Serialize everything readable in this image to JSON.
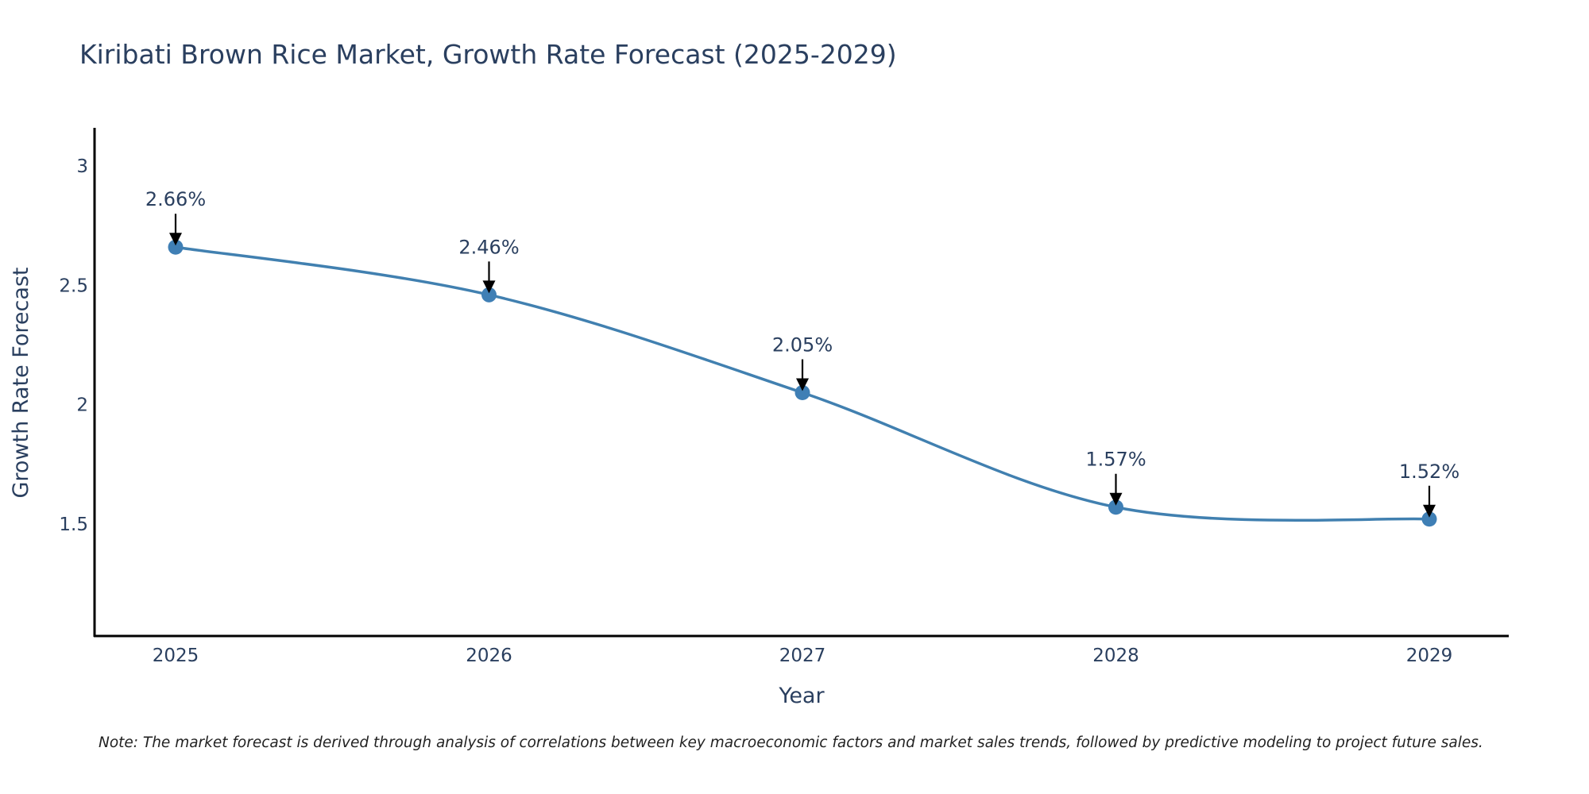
{
  "chart_data": {
    "type": "line",
    "title": "Kiribati Brown Rice Market, Growth Rate Forecast (2025-2029)",
    "xlabel": "Year",
    "ylabel": "Growth Rate Forecast",
    "categories": [
      "2025",
      "2026",
      "2027",
      "2028",
      "2029"
    ],
    "values": [
      2.66,
      2.46,
      2.05,
      1.57,
      1.52
    ],
    "data_labels": [
      "2.66%",
      "2.46%",
      "2.05%",
      "1.57%",
      "1.52%"
    ],
    "ylim": [
      1.03,
      3.16
    ],
    "yticks": [
      1.5,
      2,
      2.5,
      3
    ],
    "ytick_labels": [
      "1.5",
      "2",
      "2.5",
      "3"
    ],
    "line_color": "#4180b0",
    "marker_color": "#3f7fb5",
    "arrow_color": "#000000",
    "line_shape": "spline",
    "grid": false,
    "legend": "none",
    "note": "Note: The market forecast is derived through analysis of correlations between key macroeconomic factors and market sales trends, followed by predictive modeling to project future sales."
  }
}
